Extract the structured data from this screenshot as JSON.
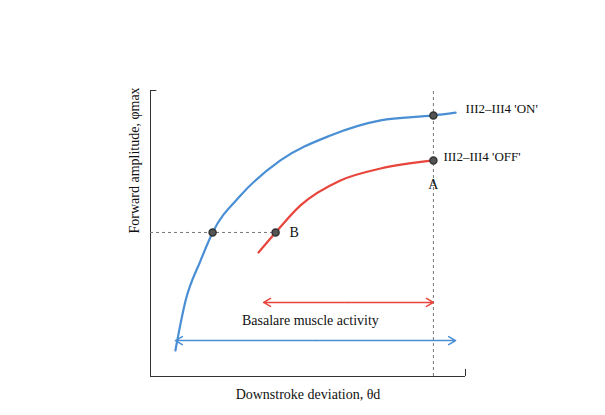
{
  "chart_data": {
    "type": "line",
    "xlabel": "Downstroke deviation, θd",
    "ylabel": "Forward amplitude, φmax",
    "xlim": [
      0,
      10.5
    ],
    "ylim": [
      -1,
      10
    ],
    "xticks": [],
    "yticks": [],
    "tick_labels": false,
    "series": [
      {
        "name": "III2–III4 'ON'",
        "color": "#4a8fd4",
        "x": [
          0.83,
          1.17,
          1.67,
          2.07,
          3.0,
          4.33,
          6.0,
          7.67,
          9.43,
          10.17
        ],
        "values": [
          0,
          1.92,
          3.46,
          4.54,
          5.96,
          7.31,
          8.27,
          8.85,
          9.04,
          9.15
        ]
      },
      {
        "name": "III2–III4 'OFF'",
        "color": "#e8453c",
        "x": [
          3.6,
          4.17,
          5.0,
          6.33,
          7.67,
          9.43
        ],
        "values": [
          3.77,
          4.54,
          5.58,
          6.54,
          7.0,
          7.31
        ]
      }
    ],
    "points": [
      {
        "series": "III2–III4 'ON'",
        "x": 2.07,
        "y": 4.54
      },
      {
        "series": "III2–III4 'OFF'",
        "x": 4.17,
        "y": 4.54,
        "label": "B"
      },
      {
        "series": "III2–III4 'ON'",
        "x": 9.43,
        "y": 9.04
      },
      {
        "series": "III2–III4 'OFF'",
        "x": 9.43,
        "y": 7.31,
        "label": "A"
      }
    ],
    "ranges": [
      {
        "series": "III2–III4 'OFF'",
        "x": [
          3.77,
          9.43
        ],
        "y": 1.85
      },
      {
        "series": "III2–III4 'ON'",
        "x": [
          0.83,
          10.17
        ],
        "y": 0.38
      }
    ],
    "annotations": [
      {
        "text": "Basalare muscle activity",
        "x": 5.33,
        "y": 1.15
      }
    ]
  }
}
